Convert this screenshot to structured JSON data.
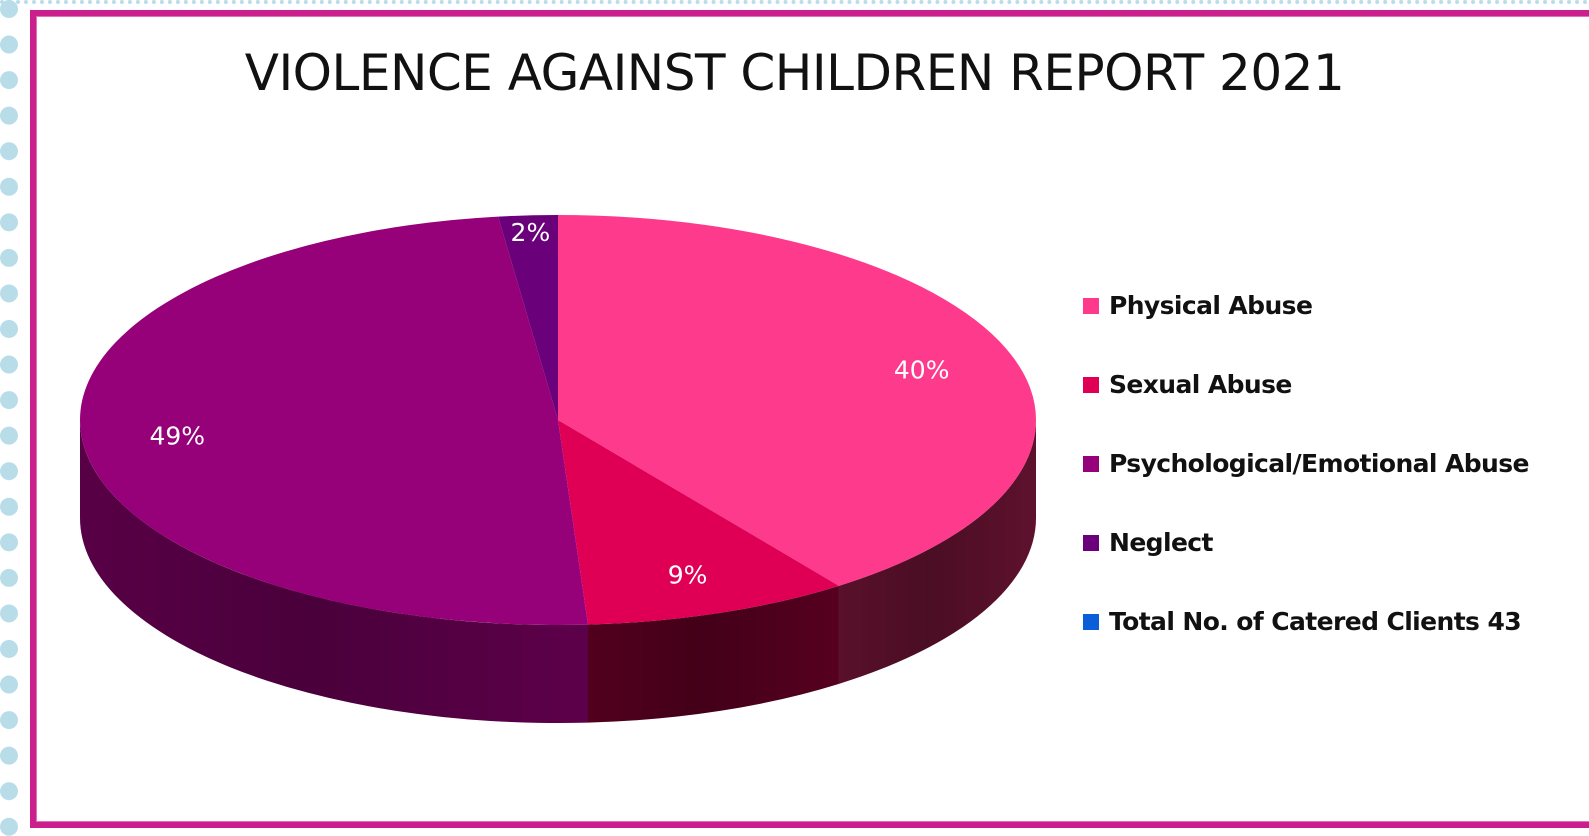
{
  "chart_data": {
    "type": "pie",
    "title": "VIOLENCE AGAINST CHILDREN REPORT 2021",
    "legend_position": "right",
    "slices": [
      {
        "label": "Physical Abuse",
        "value": 40,
        "data_label": "40%",
        "color": "#fd3a8c",
        "side_color": "#63122f"
      },
      {
        "label": "Sexual Abuse",
        "value": 9,
        "data_label": "9%",
        "color": "#df0055",
        "side_color": "#5a0020"
      },
      {
        "label": "Psychological/Emotional Abuse",
        "value": 49,
        "data_label": "49%",
        "color": "#960078",
        "side_color": "#62004e"
      },
      {
        "label": "Neglect",
        "value": 2,
        "data_label": "2%",
        "color": "#6a007a",
        "side_color": "#3e0048"
      },
      {
        "label": "Total No. of Catered Clients 43",
        "value": 0,
        "data_label": "",
        "color": "#0a5fd8",
        "side_color": "#0a3f8a"
      }
    ]
  }
}
